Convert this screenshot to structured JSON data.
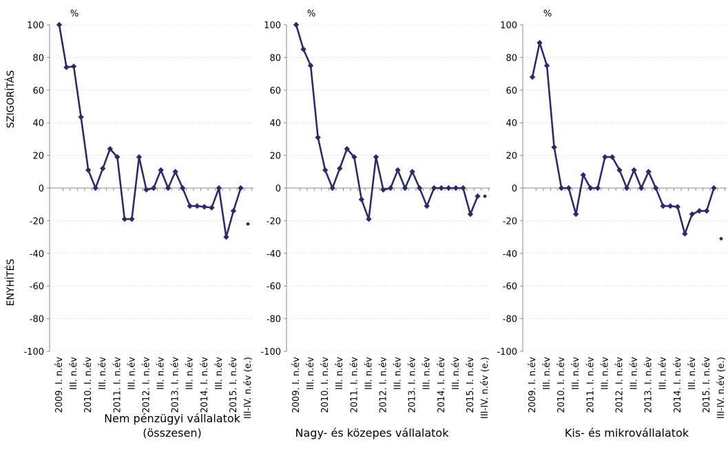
{
  "chart_data": [
    {
      "type": "line",
      "title": "Nem pénzügyi vállalatok (összesen)",
      "unit": "%",
      "y_label_top": "SZIGORÍTÁS",
      "y_label_bottom": "ENYHÍTÉS",
      "categories": [
        "2009. I. n.év",
        null,
        "III. n.év",
        null,
        "2010. I. n.év",
        null,
        "III. n.év",
        null,
        "2011. I. n.év",
        null,
        "III. n.év",
        null,
        "2012. I. n.év",
        null,
        "III. n.év",
        null,
        "2013. I. n.év",
        null,
        "III. n.év",
        null,
        "2014. I. n.év",
        null,
        "III. n.év",
        null,
        "2015. I. n.év",
        null,
        "III-IV. n.év (e.)"
      ],
      "series": [
        {
          "color": "#2b2a6b",
          "values": [
            100,
            74,
            74.5,
            43.5,
            11,
            0,
            12,
            24,
            19,
            -19,
            -19,
            19,
            -1,
            0,
            11,
            0,
            10,
            0,
            -11,
            -11,
            -11.5,
            -12,
            0,
            -30,
            -14,
            0,
            null
          ]
        },
        {
          "color": "#2b2a6b",
          "line": false,
          "values": [
            null,
            null,
            null,
            null,
            null,
            null,
            null,
            null,
            null,
            null,
            null,
            null,
            null,
            null,
            null,
            null,
            null,
            null,
            null,
            null,
            null,
            null,
            null,
            null,
            null,
            null,
            -22
          ]
        }
      ],
      "ylim": [
        -100,
        100
      ],
      "yticks": [
        -100,
        -80,
        -60,
        -40,
        -20,
        0,
        20,
        40,
        60,
        80,
        100
      ],
      "grid": true
    },
    {
      "type": "line",
      "title": "Nagy- és közepes vállalatok",
      "unit": "%",
      "categories": [
        "2009. I. n.év",
        null,
        "III. n.év",
        null,
        "2010. I. n.év",
        null,
        "III. n.év",
        null,
        "2011. I. n.év",
        null,
        "III. n.év",
        null,
        "2012. I. n.év",
        null,
        "III. n.év",
        null,
        "2013. I. n.év",
        null,
        "III. n.év",
        null,
        "2014. I. n.év",
        null,
        "III. n.év",
        null,
        "2015. I. n.év",
        null,
        "III-IV. n.év (e.)"
      ],
      "series": [
        {
          "color": "#2b2a6b",
          "values": [
            100,
            85,
            75,
            31,
            11,
            0,
            12,
            24,
            19,
            -7,
            -19,
            19,
            -1,
            0,
            11,
            0,
            10,
            0,
            -11,
            0,
            0,
            0,
            0,
            0,
            -16,
            -5,
            null
          ]
        },
        {
          "color": "#2b2a6b",
          "line": false,
          "values": [
            null,
            null,
            null,
            null,
            null,
            null,
            null,
            null,
            null,
            null,
            null,
            null,
            null,
            null,
            null,
            null,
            null,
            null,
            null,
            null,
            null,
            null,
            null,
            null,
            null,
            null,
            -5
          ]
        }
      ],
      "ylim": [
        -100,
        100
      ],
      "yticks": [
        -100,
        -80,
        -60,
        -40,
        -20,
        0,
        20,
        40,
        60,
        80,
        100
      ],
      "grid": true
    },
    {
      "type": "line",
      "title": "Kis- és mikrovállalatok",
      "unit": "%",
      "categories": [
        "2009. I. n.év",
        null,
        "III. n.év",
        null,
        "2010. I. n.év",
        null,
        "III. n.év",
        null,
        "2011. I. n.év",
        null,
        "III. n.év",
        null,
        "2012. I. n.év",
        null,
        "III. n.év",
        null,
        "2013. I. n.év",
        null,
        "III. n.év",
        null,
        "2014. I. n.év",
        null,
        "III. n.év",
        null,
        "2015. I. n.év",
        null,
        "III-IV. n.év (e.)"
      ],
      "series": [
        {
          "color": "#2b2a6b",
          "values": [
            68,
            89,
            75,
            25,
            0,
            0,
            -16,
            8,
            0,
            0,
            19,
            19,
            11,
            0,
            11,
            0,
            10,
            0,
            -11,
            -11,
            -11.5,
            -28,
            -16,
            -14,
            -14,
            0,
            null
          ]
        },
        {
          "color": "#2b2a6b",
          "line": false,
          "values": [
            null,
            null,
            null,
            null,
            null,
            null,
            null,
            null,
            null,
            null,
            null,
            null,
            null,
            null,
            null,
            null,
            null,
            null,
            null,
            null,
            null,
            null,
            null,
            null,
            null,
            null,
            -31
          ]
        }
      ],
      "ylim": [
        -100,
        100
      ],
      "yticks": [
        -100,
        -80,
        -60,
        -40,
        -20,
        0,
        20,
        40,
        60,
        80,
        100
      ],
      "grid": true
    }
  ]
}
